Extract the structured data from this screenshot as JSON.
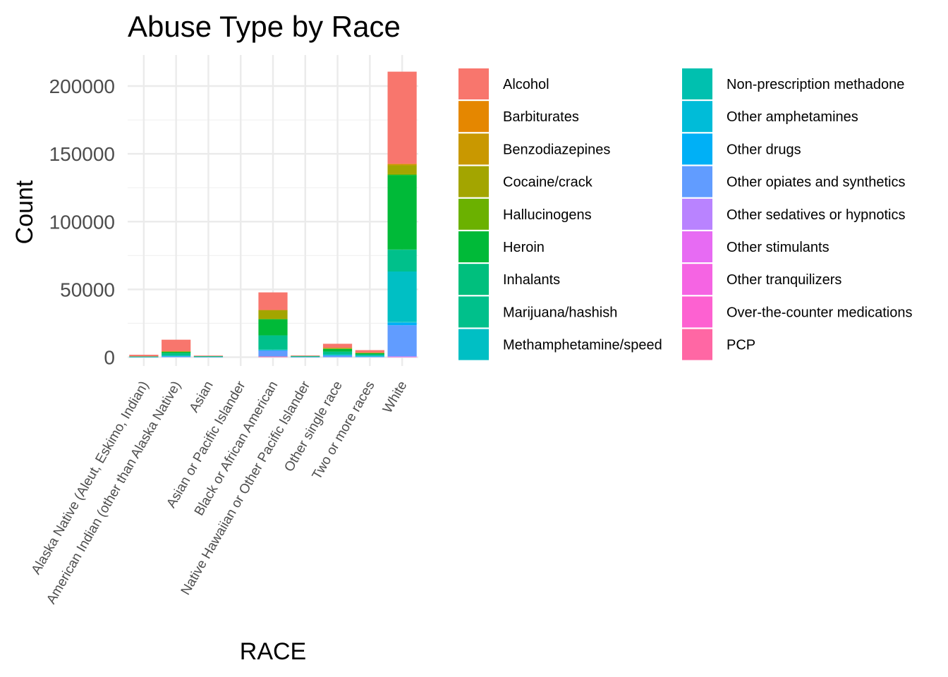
{
  "chart_data": {
    "type": "bar",
    "stacked": true,
    "title": "Abuse Type by Race",
    "xlabel": "RACE",
    "ylabel": "Count",
    "ylim": [
      0,
      215000
    ],
    "yticks": [
      0,
      50000,
      100000,
      150000,
      200000
    ],
    "grid": true,
    "legend": "right",
    "categories": [
      "Alaska Native (Aleut, Eskimo, Indian)",
      "American Indian (other than Alaska Native)",
      "Asian",
      "Asian or Pacific Islander",
      "Black or African American",
      "Native Hawaiian or Other Pacific Islander",
      "Other single race",
      "Two or more races",
      "White"
    ],
    "series": [
      {
        "name": "Alcohol",
        "color": "#F8766D",
        "values": [
          1200,
          8500,
          400,
          0,
          13000,
          400,
          3000,
          1800,
          68000
        ]
      },
      {
        "name": "Barbiturates",
        "color": "#E58700",
        "values": [
          0,
          0,
          0,
          0,
          0,
          0,
          0,
          0,
          100
        ]
      },
      {
        "name": "Benzodiazepines",
        "color": "#C99800",
        "values": [
          0,
          100,
          0,
          0,
          100,
          0,
          0,
          100,
          1000
        ]
      },
      {
        "name": "Cocaine/crack",
        "color": "#A3A500",
        "values": [
          0,
          300,
          0,
          0,
          6500,
          0,
          800,
          300,
          6500
        ]
      },
      {
        "name": "Hallucinogens",
        "color": "#6BB100",
        "values": [
          0,
          0,
          0,
          0,
          100,
          0,
          0,
          0,
          600
        ]
      },
      {
        "name": "Heroin",
        "color": "#00BA38",
        "values": [
          200,
          1000,
          100,
          0,
          12000,
          100,
          2000,
          900,
          55000
        ]
      },
      {
        "name": "Inhalants",
        "color": "#00BF7D",
        "values": [
          0,
          0,
          0,
          0,
          0,
          0,
          0,
          0,
          200
        ]
      },
      {
        "name": "Marijuana/hashish",
        "color": "#00C08B",
        "values": [
          200,
          1800,
          300,
          0,
          10500,
          400,
          2000,
          900,
          16000
        ]
      },
      {
        "name": "Methamphetamine/speed",
        "color": "#00BFC4",
        "values": [
          100,
          500,
          300,
          0,
          500,
          300,
          700,
          600,
          37000
        ]
      },
      {
        "name": "Non-prescription methadone",
        "color": "#00C0AF",
        "values": [
          0,
          0,
          0,
          0,
          0,
          0,
          0,
          0,
          300
        ]
      },
      {
        "name": "Other amphetamines",
        "color": "#00BCD8",
        "values": [
          0,
          0,
          0,
          0,
          0,
          0,
          0,
          0,
          500
        ]
      },
      {
        "name": "Other drugs",
        "color": "#00B0F6",
        "values": [
          0,
          100,
          0,
          0,
          100,
          0,
          100,
          100,
          1800
        ]
      },
      {
        "name": "Other opiates and synthetics",
        "color": "#619CFF",
        "values": [
          100,
          600,
          100,
          0,
          4500,
          100,
          1300,
          500,
          23000
        ]
      },
      {
        "name": "Other sedatives or hypnotics",
        "color": "#B983FF",
        "values": [
          0,
          0,
          0,
          0,
          0,
          0,
          0,
          0,
          100
        ]
      },
      {
        "name": "Other stimulants",
        "color": "#E76BF3",
        "values": [
          0,
          0,
          0,
          0,
          0,
          0,
          0,
          0,
          100
        ]
      },
      {
        "name": "Other tranquilizers",
        "color": "#F564E3",
        "values": [
          0,
          0,
          0,
          0,
          0,
          0,
          0,
          0,
          100
        ]
      },
      {
        "name": "Over-the-counter medications",
        "color": "#FD61D1",
        "values": [
          0,
          0,
          0,
          0,
          0,
          0,
          0,
          0,
          100
        ]
      },
      {
        "name": "PCP",
        "color": "#FF67A4",
        "values": [
          0,
          0,
          0,
          0,
          500,
          0,
          0,
          0,
          200
        ]
      }
    ]
  }
}
